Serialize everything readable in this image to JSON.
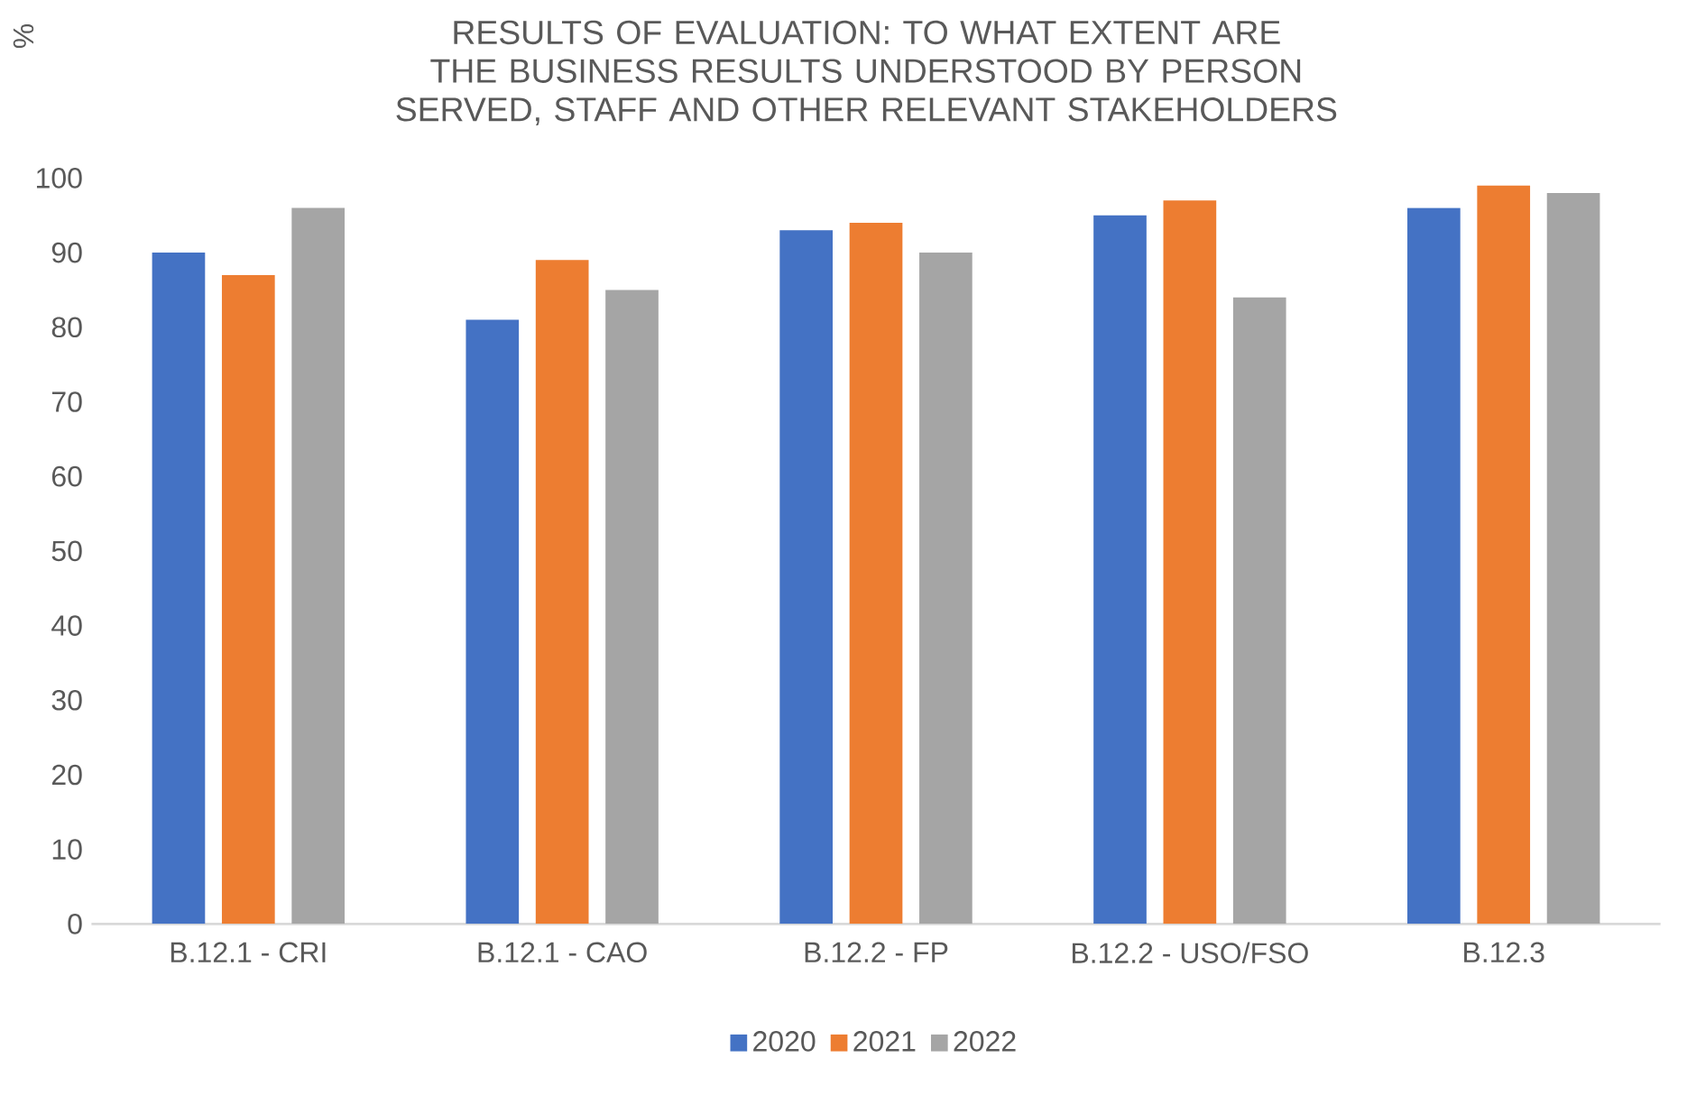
{
  "chart_data": {
    "type": "bar",
    "title": "RESULTS OF EVALUATION: TO WHAT EXTENT ARE THE BUSINESS RESULTS UNDERSTOOD BY PERSON SERVED, STAFF AND OTHER RELEVANT STAKEHOLDERS",
    "ylabel": "%",
    "categories": [
      "B.12.1 - CRI",
      "B.12.1 - CAO",
      "B.12.2 - FP",
      "B.12.2 - USO/FSO",
      "B.12.3"
    ],
    "series": [
      {
        "name": "2020",
        "color": "#4472c4",
        "values": [
          90,
          81,
          93,
          95,
          96
        ]
      },
      {
        "name": "2021",
        "color": "#ed7d31",
        "values": [
          87,
          89,
          94,
          97,
          99
        ]
      },
      {
        "name": "2022",
        "color": "#a5a5a5",
        "values": [
          96,
          85,
          90,
          84,
          98
        ]
      }
    ],
    "ylim": [
      0,
      100
    ],
    "yticks": [
      0,
      10,
      20,
      30,
      40,
      50,
      60,
      70,
      80,
      90,
      100
    ],
    "grid": false,
    "legend": "bottom"
  }
}
